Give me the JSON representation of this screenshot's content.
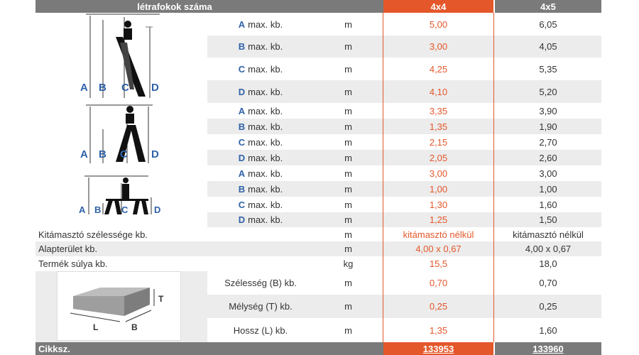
{
  "header": {
    "label": "létrafokok száma",
    "col1": "4x4",
    "col2": "4x5"
  },
  "unit_m": "m",
  "unit_kg": "kg",
  "suffix": "max. kb.",
  "rows": [
    {
      "letter": "A",
      "v1": "5,00",
      "v2": "6,05"
    },
    {
      "letter": "B",
      "v1": "3,00",
      "v2": "4,05"
    },
    {
      "letter": "C",
      "v1": "4,25",
      "v2": "5,35"
    },
    {
      "letter": "D",
      "v1": "4,10",
      "v2": "5,20"
    },
    {
      "letter": "A",
      "v1": "3,35",
      "v2": "3,90"
    },
    {
      "letter": "B",
      "v1": "1,35",
      "v2": "1,90"
    },
    {
      "letter": "C",
      "v1": "2,15",
      "v2": "2,70"
    },
    {
      "letter": "D",
      "v1": "2,05",
      "v2": "2,60"
    },
    {
      "letter": "A",
      "v1": "3,00",
      "v2": "3,00"
    },
    {
      "letter": "B",
      "v1": "1,00",
      "v2": "1,00"
    },
    {
      "letter": "C",
      "v1": "1,30",
      "v2": "1,60"
    },
    {
      "letter": "D",
      "v1": "1,25",
      "v2": "1,50"
    }
  ],
  "props": [
    {
      "label": "Kitámasztó szélessége kb.",
      "unit": "m",
      "v1": "kitámasztó nélkül",
      "v2": "kitámasztó nélkül"
    },
    {
      "label": "Alapterület kb.",
      "unit": "m",
      "v1": "4,00 x 0,67",
      "v2": "4,00 x 0,67"
    },
    {
      "label": "Termék súlya kb.",
      "unit": "kg",
      "v1": "15,5",
      "v2": "18,0"
    }
  ],
  "dims": [
    {
      "label": "Szélesség (B) kb.",
      "unit": "m",
      "v1": "0,70",
      "v2": "0,70"
    },
    {
      "label": "Mélység (T) kb.",
      "unit": "m",
      "v1": "0,25",
      "v2": "0,25"
    },
    {
      "label": "Hossz (L) kb.",
      "unit": "m",
      "v1": "1,35",
      "v2": "1,60"
    }
  ],
  "footer": {
    "label": "Cikksz.",
    "v1": "133953",
    "v2": "133960"
  },
  "diagram_letters": {
    "a": "A",
    "b": "B",
    "c": "C",
    "d": "D",
    "l": "L",
    "t": "T"
  },
  "colors": {
    "accent": "#e4572a",
    "letter_blue": "#2f62a8",
    "header_gray": "#7a7a7a",
    "stripe": "#ececec"
  }
}
